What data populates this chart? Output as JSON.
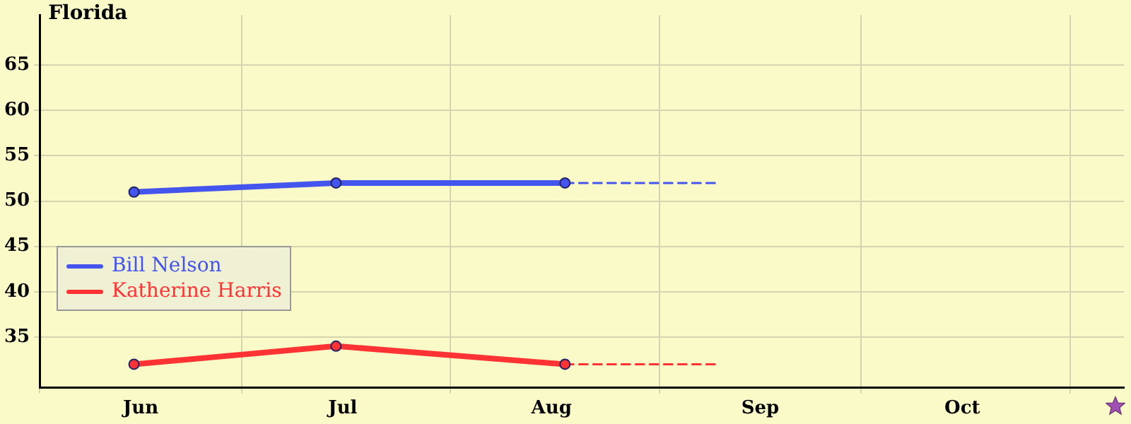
{
  "chart_data": {
    "type": "line",
    "title": "Florida",
    "xlim": [
      "--06-01",
      "--11-09"
    ],
    "xticks": [
      {
        "value": "--06-01",
        "label": null
      },
      {
        "value": "--06-16",
        "label": "Jun"
      },
      {
        "value": "--07-01",
        "label": null
      },
      {
        "value": "--07-16",
        "label": "Jul"
      },
      {
        "value": "--08-01",
        "label": null
      },
      {
        "value": "--08-16",
        "label": "Aug"
      },
      {
        "value": "--09-01",
        "label": null
      },
      {
        "value": "--09-16",
        "label": "Sep"
      },
      {
        "value": "--10-01",
        "label": null
      },
      {
        "value": "--10-16",
        "label": "Oct"
      },
      {
        "value": "--11-01",
        "label": null
      }
    ],
    "ylim": [
      29.4,
      70.5
    ],
    "yticks": [
      35,
      40,
      45,
      50,
      55,
      60,
      65
    ],
    "grid": true,
    "legend": "bottom left",
    "marker": "circle",
    "series": [
      {
        "name": "Bill Nelson",
        "color": "#4455ee",
        "x": [
          "--06-15",
          "--07-15",
          "--08-18"
        ],
        "values": [
          51,
          52,
          52
        ]
      },
      {
        "name": "Katherine Harris",
        "color": "#ff3333",
        "x": [
          "--06-15",
          "--07-15",
          "--08-18"
        ],
        "values": [
          32,
          34,
          32
        ]
      },
      {
        "color": "#4455ee",
        "x": [
          "--08-18",
          "--09-10"
        ],
        "values": [
          52,
          52
        ],
        "line_style": "dashed",
        "marker": "none"
      },
      {
        "color": "#ff3333",
        "x": [
          "--08-18",
          "--09-10"
        ],
        "values": [
          32,
          32
        ],
        "line_style": "dashed",
        "marker": "none"
      }
    ]
  }
}
